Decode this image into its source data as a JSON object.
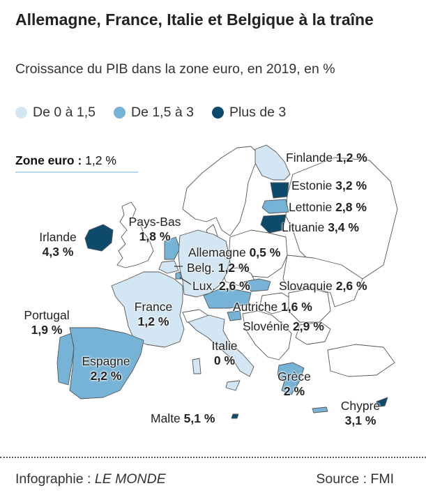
{
  "title": "Allemagne, France, Italie et Belgique à la traîne",
  "subtitle": "Croissance du PIB dans la zone euro, en 2019, en %",
  "legend": [
    {
      "label": "De 0 à 1,5",
      "color": "#d3e6f3"
    },
    {
      "label": "De 1,5 à 3",
      "color": "#76b3d6"
    },
    {
      "label": "Plus de 3",
      "color": "#0d4a6b"
    }
  ],
  "zone_euro": {
    "label": "Zone euro :",
    "value": "1,2 %"
  },
  "countries": {
    "finlande": {
      "name": "Finlande",
      "value": "1,2 %",
      "class": "De 0 à 1,5"
    },
    "estonie": {
      "name": "Estonie",
      "value": "3,2 %",
      "class": "Plus de 3"
    },
    "lettonie": {
      "name": "Lettonie",
      "value": "2,8 %",
      "class": "De 1,5 à 3"
    },
    "lituanie": {
      "name": "Lituanie",
      "value": "3,4 %",
      "class": "Plus de 3"
    },
    "irlande": {
      "name": "Irlande",
      "value": "4,3 %",
      "class": "Plus de 3"
    },
    "pays_bas": {
      "name": "Pays-Bas",
      "value": "1,8 %",
      "class": "De 1,5 à 3"
    },
    "allemagne": {
      "name": "Allemagne",
      "value": "0,5 %",
      "class": "De 0 à 1,5"
    },
    "belgique": {
      "name": "Belg.",
      "value": "1,2 %",
      "class": "De 0 à 1,5"
    },
    "luxembourg": {
      "name": "Lux.",
      "value": "2,6 %",
      "class": "De 1,5 à 3"
    },
    "slovaquie": {
      "name": "Slovaquie",
      "value": "2,6 %",
      "class": "De 1,5 à 3"
    },
    "france": {
      "name": "France",
      "value": "1,2 %",
      "class": "De 0 à 1,5"
    },
    "autriche": {
      "name": "Autriche",
      "value": "1,6 %",
      "class": "De 1,5 à 3"
    },
    "portugal": {
      "name": "Portugal",
      "value": "1,9 %",
      "class": "De 1,5 à 3"
    },
    "slovenie": {
      "name": "Slovénie",
      "value": "2,9 %",
      "class": "De 1,5 à 3"
    },
    "italie": {
      "name": "Italie",
      "value": "0 %",
      "class": "De 0 à 1,5"
    },
    "espagne": {
      "name": "Espagne",
      "value": "2,2 %",
      "class": "De 1,5 à 3"
    },
    "grece": {
      "name": "Grèce",
      "value": "2 %",
      "class": "De 1,5 à 3"
    },
    "chypre": {
      "name": "Chypre",
      "value": "3,1 %",
      "class": "Plus de 3"
    },
    "malte": {
      "name": "Malte",
      "value": "5,1 %",
      "class": "Plus de 3"
    }
  },
  "footer": {
    "credit_prefix": "Infographie :",
    "credit_name": "LE MONDE",
    "source": "Source : FMI"
  }
}
